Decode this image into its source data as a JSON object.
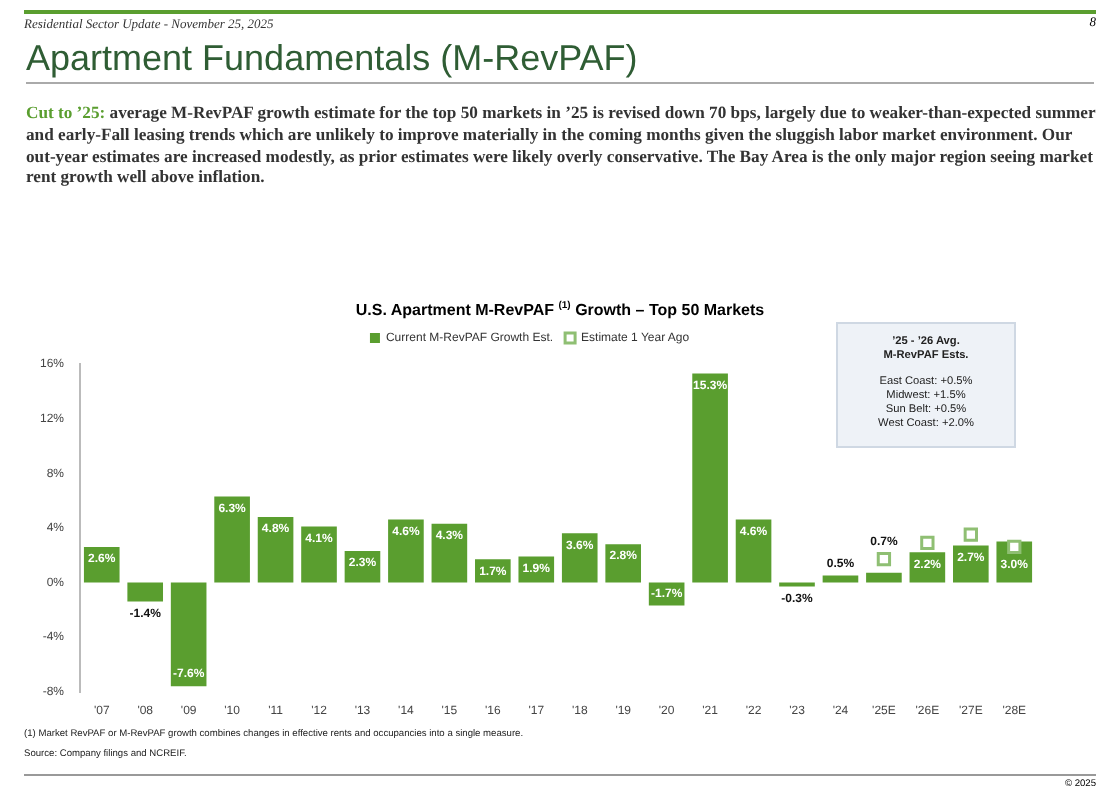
{
  "chart_data": {
    "type": "bar",
    "title": "U.S. Apartment M-RevPAF $^{(1)}$ Growth – Top 50 Markets",
    "subtitle": "Apartment Fundamentals (M-RevPAF)",
    "categories": [
      "'07",
      "'08",
      "'09",
      "'10",
      "'11",
      "'12",
      "'13",
      "'14",
      "'15",
      "'16",
      "'17",
      "'18",
      "'19",
      "'20",
      "'21",
      "'22",
      "'23",
      "'24",
      "'25E",
      "'26E",
      "'27E",
      "'28E"
    ],
    "series": [
      {
        "name": "Current M-RevPAF Growth Est.",
        "color": "#5a9e2f",
        "values": [
          2.6,
          -1.4,
          -7.6,
          6.3,
          4.8,
          4.1,
          2.3,
          4.6,
          4.3,
          1.7,
          1.9,
          3.6,
          2.8,
          -1.7,
          15.3,
          4.6,
          -0.3,
          0.5,
          0.7,
          2.2,
          2.7,
          3.0
        ]
      },
      {
        "name": "Estimate 1 Year Ago",
        "type": "scatter",
        "color": "#8fbf73",
        "x": [
          "'25E",
          "'26E",
          "'27E",
          "'28E"
        ],
        "values": [
          1.7,
          2.9,
          3.5,
          2.6
        ]
      }
    ],
    "ylim": [
      -8,
      16
    ],
    "yticks": [
      {
        "value": -8,
        "label": "-8%"
      },
      {
        "value": -4,
        "label": "-4%"
      },
      {
        "value": 0,
        "label": "0%"
      },
      {
        "value": 4,
        "label": "4%"
      },
      {
        "value": 8,
        "label": "8%"
      },
      {
        "value": 12,
        "label": "12%"
      },
      {
        "value": 16,
        "label": "16%"
      }
    ],
    "value_labels": [
      "2.6%",
      "-1.4%",
      "-7.6%",
      "6.3%",
      "4.8%",
      "4.1%",
      "2.3%",
      "4.6%",
      "4.3%",
      "1.7%",
      "1.9%",
      "3.6%",
      "2.8%",
      "-1.7%",
      "15.3%",
      "4.6%",
      "-0.3%",
      "0.5%",
      "0.7%",
      "2.2%",
      "2.7%",
      "3.0%"
    ],
    "legend": "top",
    "marker": "square",
    "grid": false,
    "annotations": [
      "Residential Sector Update - November 25, 2025",
      "8",
      "Cut to ’25: average M-RevPAF growth estimate for the top 50 markets in ’25 is revised down 70 bps, largely due to weaker-than-expected summer and early-Fall leasing trends which are unlikely to improve materially in the coming months given the sluggish labor market environment. Our out-year estimates are increased modestly, as prior estimates were likely overly conservative. The Bay Area is the only major region seeing market rent growth well above inflation.",
      "’25 - ’26 Avg.",
      "M-RevPAF Ests.",
      "East Coast: +0.5%",
      "Midwest: +1.5%",
      "Sun Belt: +0.5%",
      "West Coast: +2.0%",
      "(1) Market RevPAF or M-RevPAF growth combines changes in effective rents and occupancies into a single measure.",
      "Source: Company filings and NCREIF.",
      "© 2025"
    ]
  }
}
